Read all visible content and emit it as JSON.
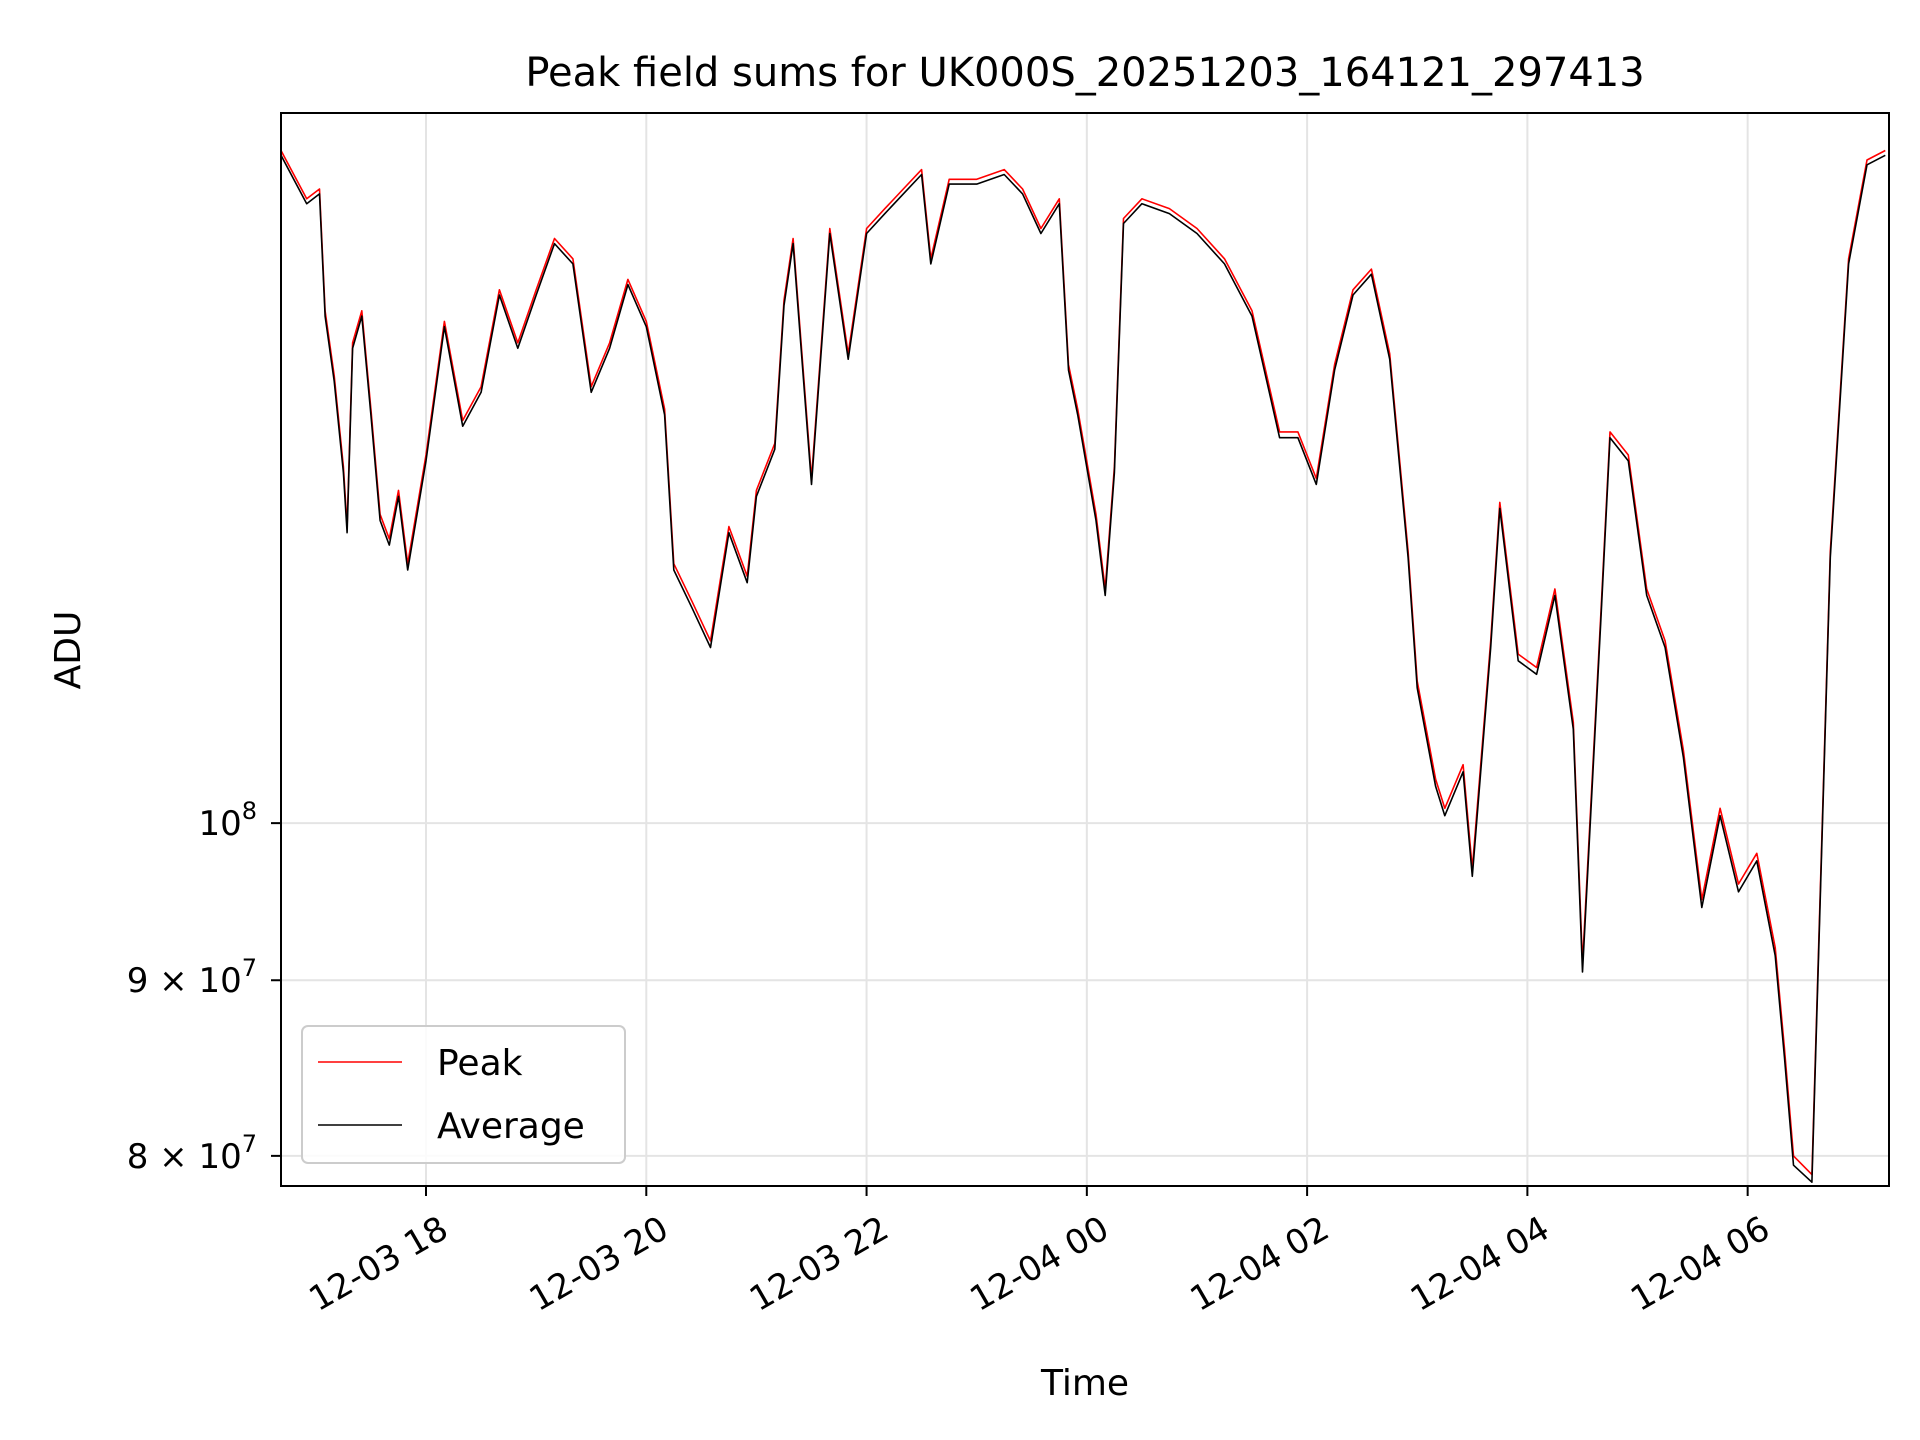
{
  "chart_data": {
    "type": "line",
    "title": "Peak field sums for UK000S_20251203_164121_297413",
    "xlabel": "Time",
    "ylabel": "ADU",
    "y_scale": "log",
    "grid": true,
    "legend_position": "lower-left",
    "xlim": [
      "2025-12-03 16:41",
      "2025-12-04 07:17"
    ],
    "ylim": [
      78400000,
      161000000
    ],
    "x_ticks": [
      {
        "value": "2025-12-03 18:00",
        "label": "12-03 18"
      },
      {
        "value": "2025-12-03 20:00",
        "label": "12-03 20"
      },
      {
        "value": "2025-12-03 22:00",
        "label": "12-03 22"
      },
      {
        "value": "2025-12-04 00:00",
        "label": "12-04 00"
      },
      {
        "value": "2025-12-04 02:00",
        "label": "12-04 02"
      },
      {
        "value": "2025-12-04 04:00",
        "label": "12-04 04"
      },
      {
        "value": "2025-12-04 06:00",
        "label": "12-04 06"
      }
    ],
    "y_ticks": [
      {
        "value": 80000000,
        "mantissa": "8",
        "label": "8 × 10^7"
      },
      {
        "value": 90000000,
        "mantissa": "9",
        "label": "9 × 10^7"
      },
      {
        "value": 100000000,
        "mantissa": "",
        "label": "10^8"
      }
    ],
    "series": [
      {
        "name": "Peak",
        "color": "#ff0000",
        "x": [
          "2025-12-03 16:41",
          "2025-12-03 16:55",
          "2025-12-03 17:02",
          "2025-12-03 17:05",
          "2025-12-03 17:10",
          "2025-12-03 17:15",
          "2025-12-03 17:17",
          "2025-12-03 17:20",
          "2025-12-03 17:25",
          "2025-12-03 17:30",
          "2025-12-03 17:35",
          "2025-12-03 17:40",
          "2025-12-03 17:45",
          "2025-12-03 17:50",
          "2025-12-03 18:00",
          "2025-12-03 18:10",
          "2025-12-03 18:20",
          "2025-12-03 18:30",
          "2025-12-03 18:40",
          "2025-12-03 18:50",
          "2025-12-03 19:00",
          "2025-12-03 19:10",
          "2025-12-03 19:20",
          "2025-12-03 19:30",
          "2025-12-03 19:40",
          "2025-12-03 19:50",
          "2025-12-03 20:00",
          "2025-12-03 20:10",
          "2025-12-03 20:15",
          "2025-12-03 20:25",
          "2025-12-03 20:35",
          "2025-12-03 20:45",
          "2025-12-03 20:55",
          "2025-12-03 21:00",
          "2025-12-03 21:10",
          "2025-12-03 21:15",
          "2025-12-03 21:20",
          "2025-12-03 21:30",
          "2025-12-03 21:40",
          "2025-12-03 21:50",
          "2025-12-03 22:00",
          "2025-12-03 22:10",
          "2025-12-03 22:20",
          "2025-12-03 22:30",
          "2025-12-03 22:35",
          "2025-12-03 22:45",
          "2025-12-03 23:00",
          "2025-12-03 23:15",
          "2025-12-03 23:25",
          "2025-12-03 23:35",
          "2025-12-03 23:45",
          "2025-12-03 23:50",
          "2025-12-03 23:55",
          "2025-12-04 00:05",
          "2025-12-04 00:10",
          "2025-12-04 00:15",
          "2025-12-04 00:20",
          "2025-12-04 00:30",
          "2025-12-04 00:45",
          "2025-12-04 01:00",
          "2025-12-04 01:15",
          "2025-12-04 01:30",
          "2025-12-04 01:45",
          "2025-12-04 01:55",
          "2025-12-04 02:05",
          "2025-12-04 02:15",
          "2025-12-04 02:25",
          "2025-12-04 02:35",
          "2025-12-04 02:45",
          "2025-12-04 02:55",
          "2025-12-04 03:00",
          "2025-12-04 03:10",
          "2025-12-04 03:15",
          "2025-12-04 03:25",
          "2025-12-04 03:30",
          "2025-12-04 03:40",
          "2025-12-04 03:45",
          "2025-12-04 03:55",
          "2025-12-04 04:05",
          "2025-12-04 04:15",
          "2025-12-04 04:25",
          "2025-12-04 04:30",
          "2025-12-04 04:40",
          "2025-12-04 04:45",
          "2025-12-04 04:55",
          "2025-12-04 05:05",
          "2025-12-04 05:15",
          "2025-12-04 05:25",
          "2025-12-04 05:35",
          "2025-12-04 05:45",
          "2025-12-04 05:55",
          "2025-12-04 06:05",
          "2025-12-04 06:15",
          "2025-12-04 06:20",
          "2025-12-04 06:25",
          "2025-12-04 06:35",
          "2025-12-04 06:45",
          "2025-12-04 06:55",
          "2025-12-04 07:05",
          "2025-12-04 07:15"
        ],
        "y": [
          157000000,
          152000000,
          153000000,
          141000000,
          135000000,
          127000000,
          122000000,
          138000000,
          141000000,
          132000000,
          123000000,
          121000000,
          125000000,
          119000000,
          128000000,
          140000000,
          131000000,
          134000000,
          143000000,
          138000000,
          143000000,
          148000000,
          146000000,
          134000000,
          138000000,
          144000000,
          140000000,
          132000000,
          119000000,
          116000000,
          113000000,
          122000000,
          118000000,
          125000000,
          129000000,
          142000000,
          148000000,
          126000000,
          149000000,
          137000000,
          149000000,
          151000000,
          153000000,
          155000000,
          146000000,
          154000000,
          154000000,
          155000000,
          153000000,
          149000000,
          152000000,
          136000000,
          132000000,
          123000000,
          117000000,
          127000000,
          150000000,
          152000000,
          151000000,
          149000000,
          146000000,
          141000000,
          130000000,
          130000000,
          126000000,
          136000000,
          143000000,
          145000000,
          137000000,
          120000000,
          110000000,
          103000000,
          101000000,
          104000000,
          97000000,
          113000000,
          124000000,
          112000000,
          111000000,
          117000000,
          107000000,
          91000000,
          115000000,
          130000000,
          128000000,
          117000000,
          113000000,
          105000000,
          95000000,
          101000000,
          96000000,
          98000000,
          92000000,
          86000000,
          80000000,
          79000000,
          120000000,
          146000000,
          156000000,
          157000000
        ]
      },
      {
        "name": "Average",
        "color": "#000000",
        "x": [
          "2025-12-03 16:41",
          "2025-12-03 16:55",
          "2025-12-03 17:02",
          "2025-12-03 17:05",
          "2025-12-03 17:10",
          "2025-12-03 17:15",
          "2025-12-03 17:17",
          "2025-12-03 17:20",
          "2025-12-03 17:25",
          "2025-12-03 17:30",
          "2025-12-03 17:35",
          "2025-12-03 17:40",
          "2025-12-03 17:45",
          "2025-12-03 17:50",
          "2025-12-03 18:00",
          "2025-12-03 18:10",
          "2025-12-03 18:20",
          "2025-12-03 18:30",
          "2025-12-03 18:40",
          "2025-12-03 18:50",
          "2025-12-03 19:00",
          "2025-12-03 19:10",
          "2025-12-03 19:20",
          "2025-12-03 19:30",
          "2025-12-03 19:40",
          "2025-12-03 19:50",
          "2025-12-03 20:00",
          "2025-12-03 20:10",
          "2025-12-03 20:15",
          "2025-12-03 20:25",
          "2025-12-03 20:35",
          "2025-12-03 20:45",
          "2025-12-03 20:55",
          "2025-12-03 21:00",
          "2025-12-03 21:10",
          "2025-12-03 21:15",
          "2025-12-03 21:20",
          "2025-12-03 21:30",
          "2025-12-03 21:40",
          "2025-12-03 21:50",
          "2025-12-03 22:00",
          "2025-12-03 22:10",
          "2025-12-03 22:20",
          "2025-12-03 22:30",
          "2025-12-03 22:35",
          "2025-12-03 22:45",
          "2025-12-03 23:00",
          "2025-12-03 23:15",
          "2025-12-03 23:25",
          "2025-12-03 23:35",
          "2025-12-03 23:45",
          "2025-12-03 23:50",
          "2025-12-03 23:55",
          "2025-12-04 00:05",
          "2025-12-04 00:10",
          "2025-12-04 00:15",
          "2025-12-04 00:20",
          "2025-12-04 00:30",
          "2025-12-04 00:45",
          "2025-12-04 01:00",
          "2025-12-04 01:15",
          "2025-12-04 01:30",
          "2025-12-04 01:45",
          "2025-12-04 01:55",
          "2025-12-04 02:05",
          "2025-12-04 02:15",
          "2025-12-04 02:25",
          "2025-12-04 02:35",
          "2025-12-04 02:45",
          "2025-12-04 02:55",
          "2025-12-04 03:00",
          "2025-12-04 03:10",
          "2025-12-04 03:15",
          "2025-12-04 03:25",
          "2025-12-04 03:30",
          "2025-12-04 03:40",
          "2025-12-04 03:45",
          "2025-12-04 03:55",
          "2025-12-04 04:05",
          "2025-12-04 04:15",
          "2025-12-04 04:25",
          "2025-12-04 04:30",
          "2025-12-04 04:40",
          "2025-12-04 04:45",
          "2025-12-04 04:55",
          "2025-12-04 05:05",
          "2025-12-04 05:15",
          "2025-12-04 05:25",
          "2025-12-04 05:35",
          "2025-12-04 05:45",
          "2025-12-04 05:55",
          "2025-12-04 06:05",
          "2025-12-04 06:15",
          "2025-12-04 06:20",
          "2025-12-04 06:25",
          "2025-12-04 06:35",
          "2025-12-04 06:45",
          "2025-12-04 06:55",
          "2025-12-04 07:05",
          "2025-12-04 07:15"
        ],
        "y": [
          156500000,
          151500000,
          152500000,
          140500000,
          134500000,
          126500000,
          121500000,
          137500000,
          140500000,
          131500000,
          122500000,
          120500000,
          124500000,
          118500000,
          127500000,
          139500000,
          130500000,
          133500000,
          142500000,
          137500000,
          142500000,
          147500000,
          145500000,
          133500000,
          137500000,
          143500000,
          139500000,
          131500000,
          118500000,
          115500000,
          112500000,
          121500000,
          117500000,
          124500000,
          128500000,
          141500000,
          147500000,
          125500000,
          148500000,
          136500000,
          148500000,
          150500000,
          152500000,
          154500000,
          145500000,
          153500000,
          153500000,
          154500000,
          152500000,
          148500000,
          151500000,
          135500000,
          131500000,
          122500000,
          116500000,
          126500000,
          149500000,
          151500000,
          150500000,
          148500000,
          145500000,
          140500000,
          129500000,
          129500000,
          125500000,
          135500000,
          142500000,
          144500000,
          136500000,
          119500000,
          109500000,
          102500000,
          100500000,
          103500000,
          96500000,
          112500000,
          123500000,
          111500000,
          110500000,
          116500000,
          106500000,
          90500000,
          114500000,
          129500000,
          127500000,
          116500000,
          112500000,
          104500000,
          94500000,
          100500000,
          95500000,
          97500000,
          91500000,
          85500000,
          79500000,
          78600000,
          119500000,
          145500000,
          155500000,
          156500000
        ]
      }
    ]
  }
}
